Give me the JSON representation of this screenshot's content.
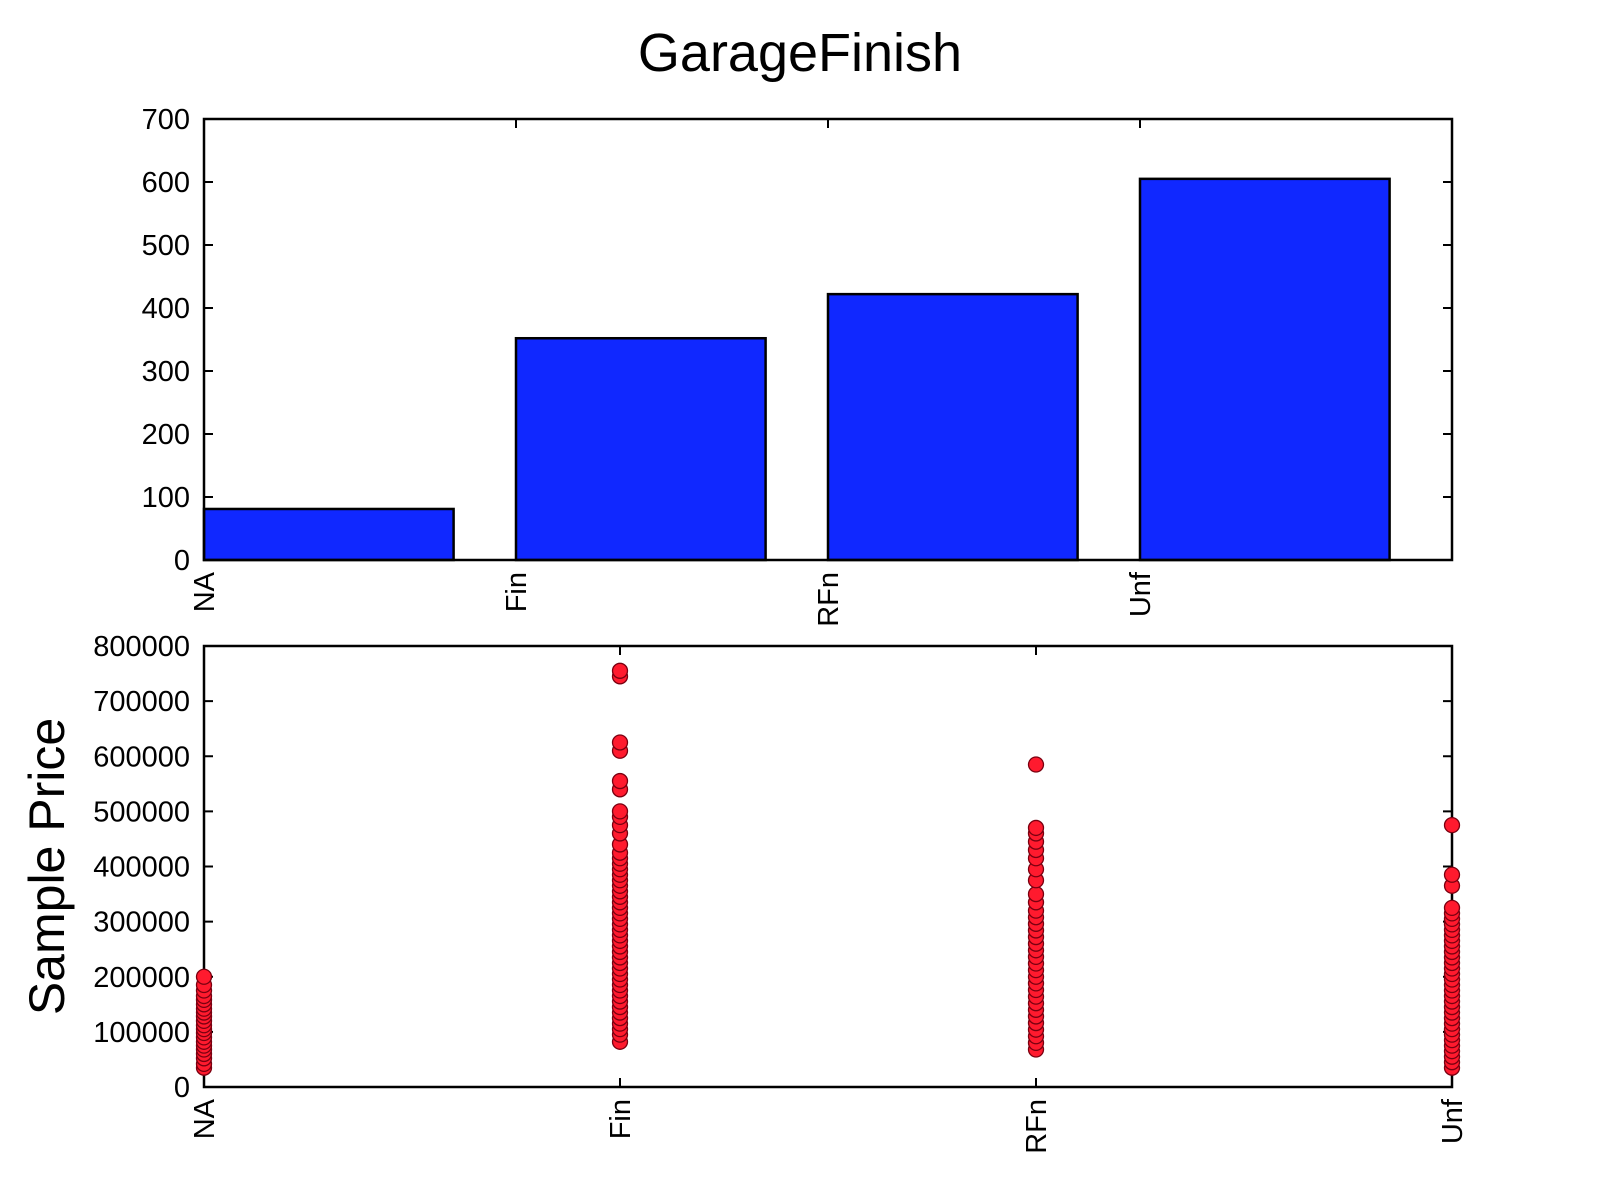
{
  "figure": {
    "title": "GarageFinish"
  },
  "chart_data": [
    {
      "type": "bar",
      "categories": [
        "NA",
        "Fin",
        "RFn",
        "Unf"
      ],
      "values": [
        81,
        352,
        422,
        605
      ],
      "xlabel": "",
      "ylabel": "",
      "ylim": [
        0,
        700
      ],
      "yticks": [
        "0",
        "100",
        "200",
        "300",
        "400",
        "500",
        "600",
        "700"
      ],
      "bar_color": "#1028ff",
      "grid": false
    },
    {
      "type": "scatter",
      "categories": [
        "NA",
        "Fin",
        "RFn",
        "Unf"
      ],
      "xlabel": "",
      "ylabel": "Sample Price",
      "ylim": [
        0,
        800000
      ],
      "yticks": [
        "0",
        "100000",
        "200000",
        "300000",
        "400000",
        "500000",
        "600000",
        "700000",
        "800000"
      ],
      "marker_color": "#ff1a2e",
      "grid": false,
      "series": [
        {
          "category": "NA",
          "values": [
            35000,
            42000,
            52000,
            60000,
            68000,
            75000,
            82000,
            90000,
            98000,
            105000,
            112000,
            120000,
            128000,
            135000,
            142000,
            150000,
            158000,
            165000,
            175000,
            185000,
            200000
          ]
        },
        {
          "category": "Fin",
          "values": [
            82000,
            95000,
            105000,
            115000,
            125000,
            135000,
            145000,
            155000,
            165000,
            175000,
            185000,
            195000,
            205000,
            215000,
            225000,
            235000,
            245000,
            255000,
            265000,
            275000,
            285000,
            295000,
            305000,
            315000,
            325000,
            335000,
            345000,
            355000,
            365000,
            375000,
            385000,
            395000,
            405000,
            415000,
            425000,
            440000,
            460000,
            475000,
            490000,
            500000,
            540000,
            555000,
            610000,
            625000,
            745000,
            755000
          ]
        },
        {
          "category": "RFn",
          "values": [
            68000,
            80000,
            92000,
            104000,
            116000,
            128000,
            140000,
            152000,
            164000,
            176000,
            188000,
            200000,
            212000,
            224000,
            236000,
            248000,
            260000,
            272000,
            284000,
            296000,
            308000,
            320000,
            335000,
            350000,
            375000,
            395000,
            415000,
            430000,
            445000,
            460000,
            470000,
            585000
          ]
        },
        {
          "category": "Unf",
          "values": [
            35000,
            45000,
            55000,
            65000,
            75000,
            85000,
            95000,
            105000,
            115000,
            125000,
            135000,
            145000,
            155000,
            165000,
            175000,
            185000,
            195000,
            205000,
            215000,
            225000,
            235000,
            245000,
            255000,
            265000,
            275000,
            285000,
            295000,
            305000,
            315000,
            325000,
            365000,
            385000,
            475000
          ]
        }
      ]
    }
  ]
}
